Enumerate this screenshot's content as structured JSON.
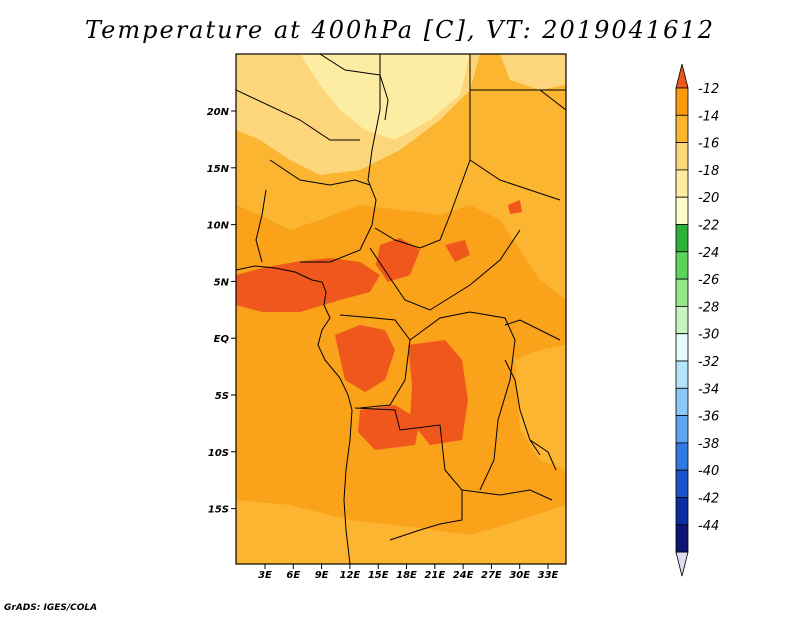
{
  "title": "Temperature at 400hPa [C], VT: 2019041612",
  "credit": "GrADS: IGES/COLA",
  "map": {
    "lat_labels": [
      "20N",
      "15N",
      "10N",
      "5N",
      "EQ",
      "5S",
      "10S",
      "15S"
    ],
    "lon_labels": [
      "3E",
      "6E",
      "9E",
      "12E",
      "15E",
      "18E",
      "21E",
      "24E",
      "27E",
      "30E",
      "33E"
    ],
    "base_color": "#f9a21a"
  },
  "colorbar": {
    "labels": [
      "-12",
      "-14",
      "-16",
      "-18",
      "-20",
      "-22",
      "-24",
      "-26",
      "-28",
      "-30",
      "-32",
      "-34",
      "-36",
      "-38",
      "-40",
      "-42",
      "-44"
    ],
    "colors": [
      "#f0571c",
      "#f99a10",
      "#fbb530",
      "#fdd57b",
      "#fdeda2",
      "#fffdc8",
      "#2eb03a",
      "#5cd45c",
      "#96e58a",
      "#c9f3c2",
      "#e5fbfb",
      "#b5e3fb",
      "#8bc8f5",
      "#5ea5ef",
      "#3278e3",
      "#1b53c8",
      "#0b2fa1",
      "#0d1472",
      "#dcdcf2"
    ]
  }
}
